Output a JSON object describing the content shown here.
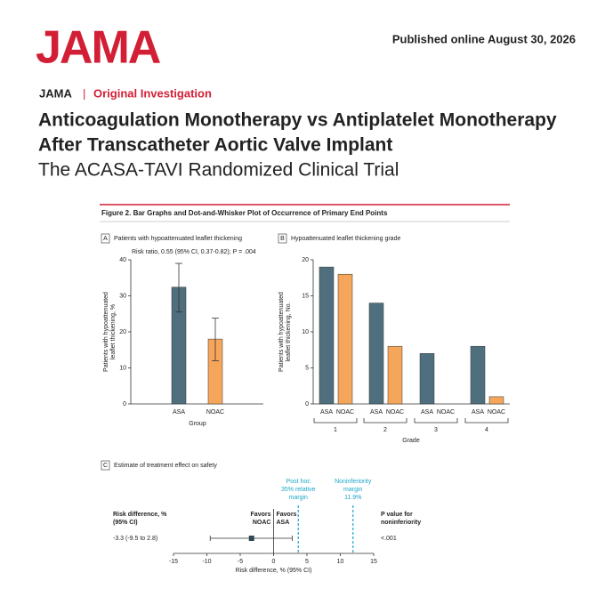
{
  "header": {
    "logo": "JAMA",
    "published": "Published online August 30, 2026",
    "journal": "JAMA",
    "section": "Original Investigation",
    "title_lines": [
      "Anticoagulation Monotherapy vs Antiplatelet Monotherapy",
      "After Transcatheter Aortic Valve Implant"
    ],
    "subtitle": "The ACASA-TAVI Randomized Clinical Trial"
  },
  "figure_title": "Figure 2. Bar Graphs and Dot-and-Whisker Plot of Occurrence of Primary End Points",
  "chart_data": [
    {
      "type": "bar",
      "panel": "A",
      "title": "Patients with hypoattenuated leaflet thickening",
      "annotation": "Risk ratio, 0.55 (95% CI, 0.37-0.82); P = .004",
      "categories": [
        "ASA",
        "NOAC"
      ],
      "values": [
        32.4,
        18.0
      ],
      "ci_low": [
        25.5,
        12.0
      ],
      "ci_high": [
        39.0,
        23.8
      ],
      "colors": [
        "#4f6f7e",
        "#f5a65b"
      ],
      "x_label": "Group",
      "y_label": [
        "Patients with hypoattenuated",
        "leaflet thickening, %"
      ],
      "ylim": [
        0,
        40
      ],
      "yticks": [
        0,
        10,
        20,
        30,
        40
      ]
    },
    {
      "type": "grouped_bar",
      "panel": "B",
      "title": "Hypoattenuated leaflet thickening grade",
      "categories": [
        "1",
        "2",
        "3",
        "4"
      ],
      "series": [
        {
          "name": "ASA",
          "color": "#4f6f7e",
          "values": [
            19,
            14,
            7,
            8
          ]
        },
        {
          "name": "NOAC",
          "color": "#f5a65b",
          "values": [
            18,
            8,
            0,
            1
          ]
        }
      ],
      "x_label": "Grade",
      "y_label": [
        "Patients with hypoattenuated",
        "leaflet thickening, No."
      ],
      "ylim": [
        0,
        20
      ],
      "yticks": [
        0,
        5,
        10,
        15,
        20
      ]
    },
    {
      "type": "forest",
      "panel": "C",
      "title": "Estimate of treatment effect on safety",
      "left_header": [
        "Risk difference, %",
        "(95% CI)"
      ],
      "right_header": [
        "P value for",
        "noninferiority"
      ],
      "estimate": -3.3,
      "ci_low": -9.5,
      "ci_high": 2.8,
      "value_label": "-3.3 (-9.5 to 2.8)",
      "p_value": "<.001",
      "favors_left": [
        "Favors",
        "NOAC"
      ],
      "favors_right": [
        "Favors",
        "ASA"
      ],
      "margins": [
        {
          "value": 3.7,
          "label": [
            "Post hoc",
            "35% relative",
            "margin"
          ]
        },
        {
          "value": 11.9,
          "label": [
            "Noninferiority",
            "margin",
            "11.9%"
          ]
        }
      ],
      "margin_color": "#1ea5c8",
      "x_label": "Risk difference, % (95% CI)",
      "xlim": [
        -15,
        15
      ],
      "xticks": [
        -15,
        -10,
        -5,
        0,
        5,
        10,
        15
      ]
    }
  ]
}
